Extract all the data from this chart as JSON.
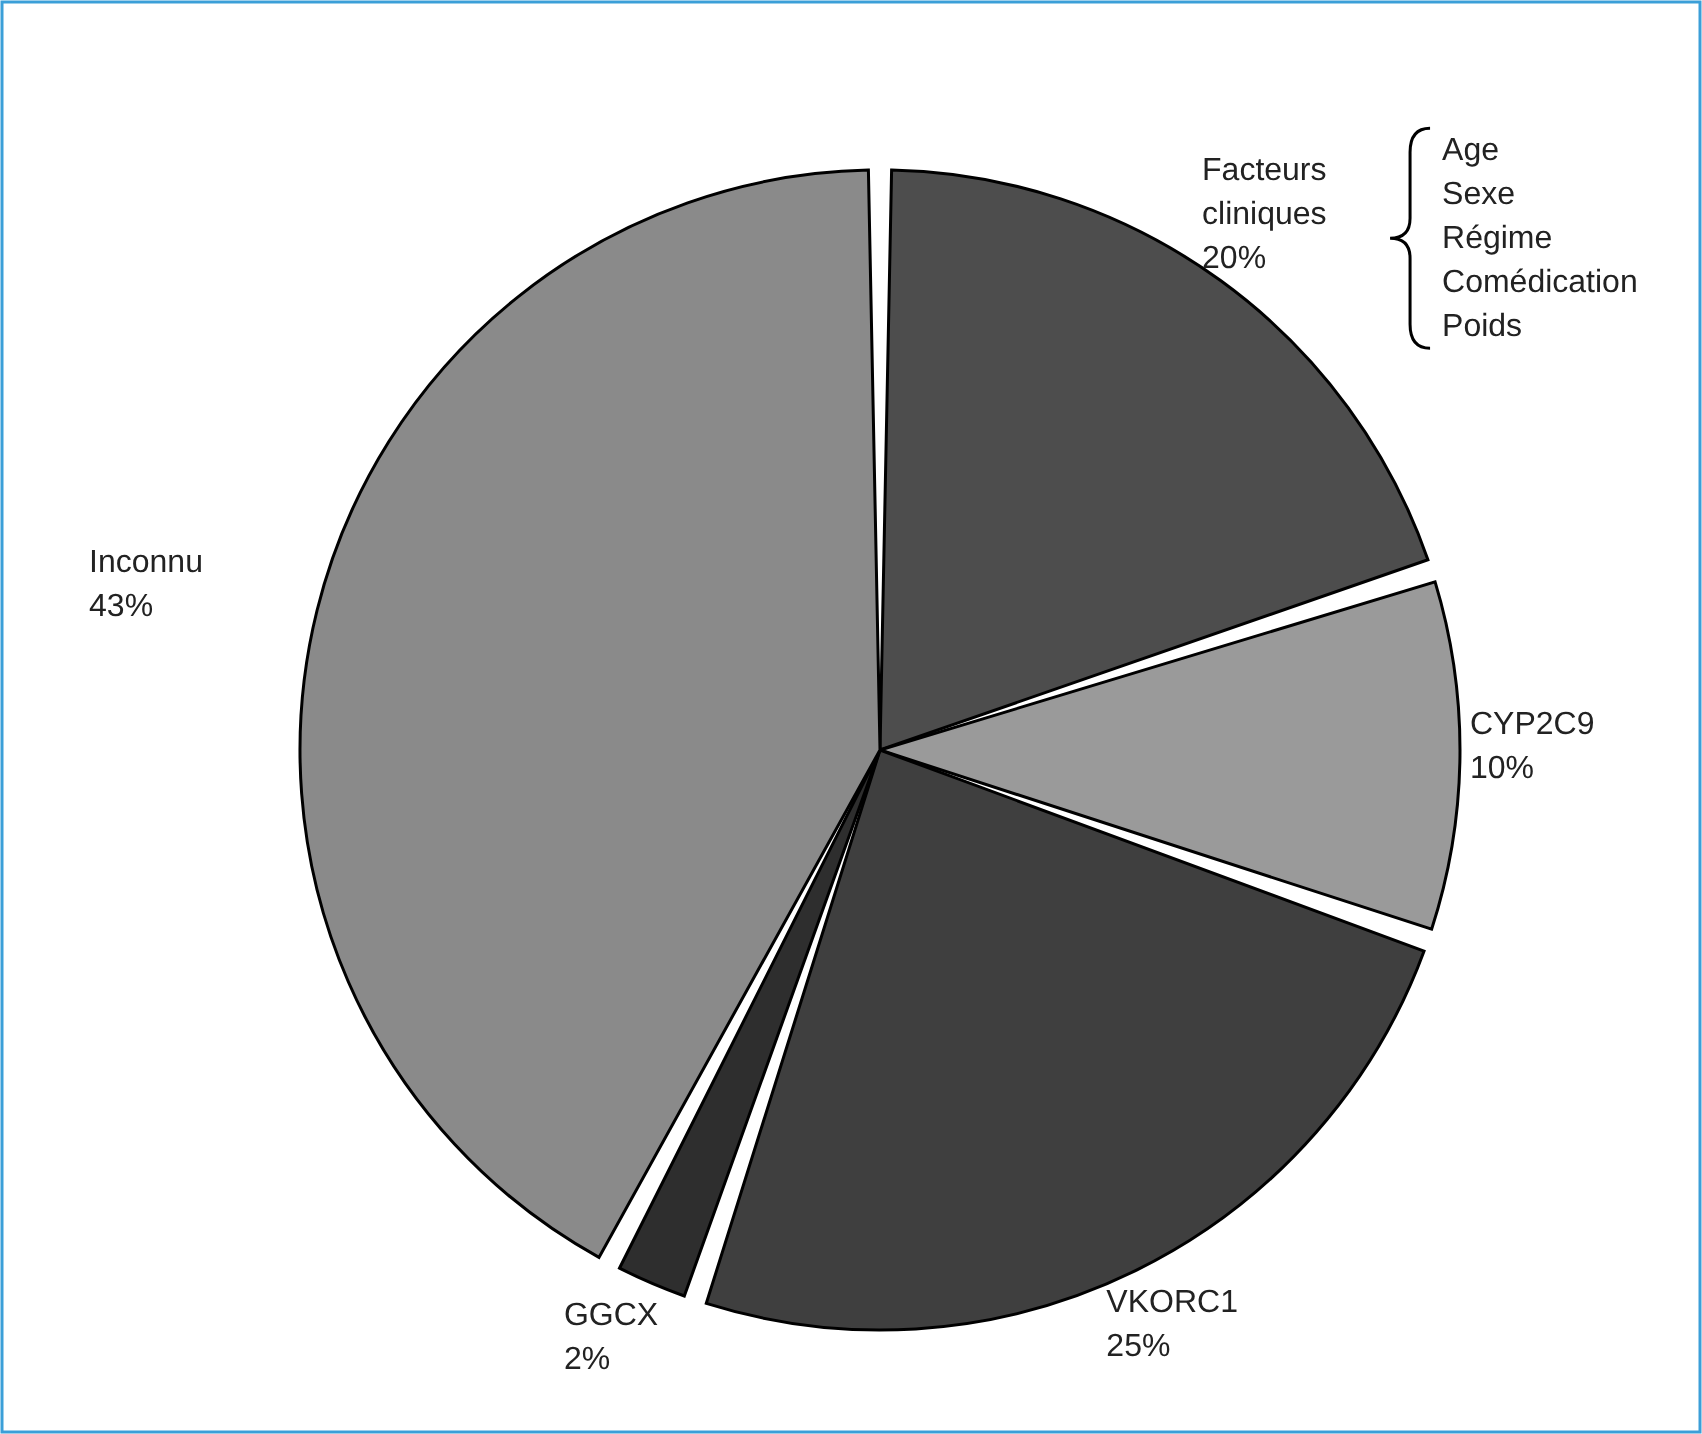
{
  "chart_data": {
    "type": "pie",
    "categories": [
      "Facteurs cliniques",
      "CYP2C9",
      "VKORC1",
      "GGCX",
      "Inconnu"
    ],
    "values": [
      20,
      10,
      25,
      2,
      43
    ],
    "colors": [
      "#4d4d4d",
      "#9a9a9a",
      "#3f3f3f",
      "#2e2e2e",
      "#8a8a8a"
    ],
    "value_labels": [
      "20%",
      "10%",
      "25%",
      "2%",
      "43%"
    ],
    "annotations": [
      "Age",
      "Sexe",
      "Régime",
      "Comédication",
      "Poids"
    ]
  }
}
